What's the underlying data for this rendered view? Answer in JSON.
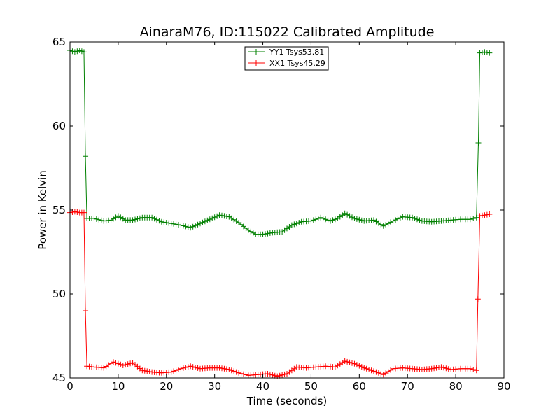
{
  "chart_data": {
    "type": "line",
    "title": "AinaraM76, ID:115022 Calibrated Amplitude",
    "xlabel": "Time (seconds)",
    "ylabel": "Power in Kelvin",
    "xlim": [
      0,
      90
    ],
    "ylim": [
      45,
      65
    ],
    "xticks": [
      0,
      10,
      20,
      30,
      40,
      50,
      60,
      70,
      80,
      90
    ],
    "yticks": [
      45,
      50,
      55,
      60,
      65
    ],
    "grid": false,
    "legend_position": "top-center",
    "series": [
      {
        "name": "YY1 Tsys53.81",
        "color": "#008000",
        "marker": "+",
        "points": [
          [
            0.0,
            64.5
          ],
          [
            1.0,
            64.4
          ],
          [
            2.0,
            64.5
          ],
          [
            2.9,
            64.4
          ],
          [
            3.2,
            58.2
          ],
          [
            3.5,
            54.5
          ],
          [
            5.0,
            54.5
          ],
          [
            7.0,
            54.35
          ],
          [
            8.5,
            54.4
          ],
          [
            10.0,
            54.65
          ],
          [
            11.5,
            54.4
          ],
          [
            13.0,
            54.4
          ],
          [
            15.0,
            54.55
          ],
          [
            17.0,
            54.55
          ],
          [
            19.0,
            54.3
          ],
          [
            21.0,
            54.2
          ],
          [
            23.0,
            54.1
          ],
          [
            25.0,
            53.95
          ],
          [
            27.0,
            54.2
          ],
          [
            29.0,
            54.45
          ],
          [
            31.0,
            54.7
          ],
          [
            33.0,
            54.6
          ],
          [
            35.0,
            54.25
          ],
          [
            37.0,
            53.8
          ],
          [
            38.5,
            53.55
          ],
          [
            40.0,
            53.55
          ],
          [
            42.0,
            53.65
          ],
          [
            44.0,
            53.7
          ],
          [
            46.0,
            54.1
          ],
          [
            48.0,
            54.3
          ],
          [
            50.0,
            54.35
          ],
          [
            52.0,
            54.55
          ],
          [
            54.0,
            54.35
          ],
          [
            55.5,
            54.5
          ],
          [
            57.0,
            54.8
          ],
          [
            59.0,
            54.5
          ],
          [
            61.0,
            54.35
          ],
          [
            63.0,
            54.4
          ],
          [
            65.0,
            54.05
          ],
          [
            67.0,
            54.35
          ],
          [
            69.0,
            54.6
          ],
          [
            71.0,
            54.55
          ],
          [
            73.0,
            54.35
          ],
          [
            75.0,
            54.3
          ],
          [
            77.0,
            54.35
          ],
          [
            79.0,
            54.4
          ],
          [
            81.0,
            54.45
          ],
          [
            83.0,
            54.45
          ],
          [
            84.3,
            54.55
          ],
          [
            84.7,
            59.0
          ],
          [
            85.0,
            64.35
          ],
          [
            86.0,
            64.4
          ],
          [
            87.0,
            64.35
          ]
        ]
      },
      {
        "name": "XX1 Tsys45.29",
        "color": "#ff0000",
        "marker": "+",
        "points": [
          [
            0.0,
            54.85
          ],
          [
            1.0,
            54.9
          ],
          [
            2.0,
            54.85
          ],
          [
            2.9,
            54.85
          ],
          [
            3.2,
            49.0
          ],
          [
            3.5,
            45.7
          ],
          [
            5.0,
            45.65
          ],
          [
            7.0,
            45.6
          ],
          [
            9.0,
            45.95
          ],
          [
            11.0,
            45.75
          ],
          [
            13.0,
            45.9
          ],
          [
            15.0,
            45.45
          ],
          [
            17.0,
            45.35
          ],
          [
            19.0,
            45.3
          ],
          [
            21.0,
            45.35
          ],
          [
            23.0,
            45.55
          ],
          [
            25.0,
            45.7
          ],
          [
            27.0,
            45.55
          ],
          [
            29.0,
            45.6
          ],
          [
            31.0,
            45.6
          ],
          [
            33.0,
            45.5
          ],
          [
            35.0,
            45.3
          ],
          [
            37.0,
            45.15
          ],
          [
            39.0,
            45.2
          ],
          [
            41.0,
            45.25
          ],
          [
            43.0,
            45.1
          ],
          [
            45.0,
            45.25
          ],
          [
            47.0,
            45.65
          ],
          [
            49.0,
            45.6
          ],
          [
            51.0,
            45.65
          ],
          [
            53.0,
            45.7
          ],
          [
            55.0,
            45.65
          ],
          [
            57.0,
            46.0
          ],
          [
            59.0,
            45.85
          ],
          [
            61.0,
            45.6
          ],
          [
            63.0,
            45.4
          ],
          [
            65.0,
            45.2
          ],
          [
            67.0,
            45.55
          ],
          [
            69.0,
            45.6
          ],
          [
            71.0,
            45.55
          ],
          [
            73.0,
            45.5
          ],
          [
            75.0,
            45.55
          ],
          [
            77.0,
            45.65
          ],
          [
            79.0,
            45.5
          ],
          [
            81.0,
            45.55
          ],
          [
            83.0,
            45.55
          ],
          [
            84.3,
            45.45
          ],
          [
            84.6,
            49.7
          ],
          [
            85.0,
            54.65
          ],
          [
            86.0,
            54.7
          ],
          [
            87.0,
            54.75
          ]
        ]
      }
    ]
  }
}
